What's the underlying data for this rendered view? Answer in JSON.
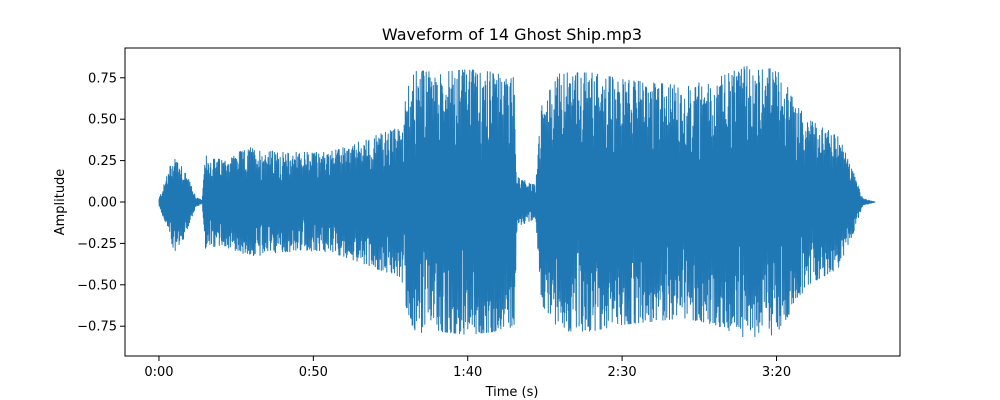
{
  "chart_data": {
    "type": "line",
    "title": "Waveform of 14 Ghost Ship.mp3",
    "xlabel": "Time (s)",
    "ylabel": "Amplitude",
    "xlim": [
      -11,
      240
    ],
    "ylim": [
      -0.93,
      0.93
    ],
    "grid": false,
    "series_color": "#1f77b4",
    "x_ticks": [
      {
        "value": 0,
        "label": "0:00"
      },
      {
        "value": 50,
        "label": "0:50"
      },
      {
        "value": 100,
        "label": "1:40"
      },
      {
        "value": 150,
        "label": "2:30"
      },
      {
        "value": 200,
        "label": "3:20"
      }
    ],
    "y_ticks": [
      {
        "value": 0.75,
        "label": "0.75"
      },
      {
        "value": 0.5,
        "label": "0.50"
      },
      {
        "value": 0.25,
        "label": "0.25"
      },
      {
        "value": 0.0,
        "label": "0.00"
      },
      {
        "value": -0.25,
        "label": "−0.25"
      },
      {
        "value": -0.5,
        "label": "−0.50"
      },
      {
        "value": -0.75,
        "label": "−0.75"
      }
    ],
    "envelope": [
      {
        "t": 0,
        "amp": 0.02
      },
      {
        "t": 3,
        "amp": 0.18
      },
      {
        "t": 5,
        "amp": 0.3
      },
      {
        "t": 8,
        "amp": 0.22
      },
      {
        "t": 10,
        "amp": 0.12
      },
      {
        "t": 12,
        "amp": 0.03
      },
      {
        "t": 14,
        "amp": 0.01
      },
      {
        "t": 15,
        "amp": 0.28
      },
      {
        "t": 20,
        "amp": 0.26
      },
      {
        "t": 30,
        "amp": 0.33
      },
      {
        "t": 40,
        "amp": 0.3
      },
      {
        "t": 55,
        "amp": 0.3
      },
      {
        "t": 60,
        "amp": 0.33
      },
      {
        "t": 70,
        "amp": 0.4
      },
      {
        "t": 78,
        "amp": 0.45
      },
      {
        "t": 82,
        "amp": 0.8
      },
      {
        "t": 90,
        "amp": 0.78
      },
      {
        "t": 100,
        "amp": 0.8
      },
      {
        "t": 110,
        "amp": 0.78
      },
      {
        "t": 115,
        "amp": 0.75
      },
      {
        "t": 116,
        "amp": 0.15
      },
      {
        "t": 122,
        "amp": 0.1
      },
      {
        "t": 124,
        "amp": 0.62
      },
      {
        "t": 130,
        "amp": 0.78
      },
      {
        "t": 140,
        "amp": 0.78
      },
      {
        "t": 150,
        "amp": 0.74
      },
      {
        "t": 160,
        "amp": 0.72
      },
      {
        "t": 170,
        "amp": 0.7
      },
      {
        "t": 180,
        "amp": 0.74
      },
      {
        "t": 190,
        "amp": 0.82
      },
      {
        "t": 200,
        "amp": 0.8
      },
      {
        "t": 210,
        "amp": 0.5
      },
      {
        "t": 220,
        "amp": 0.4
      },
      {
        "t": 225,
        "amp": 0.18
      },
      {
        "t": 228,
        "amp": 0.02
      },
      {
        "t": 232,
        "amp": 0.0
      }
    ]
  }
}
